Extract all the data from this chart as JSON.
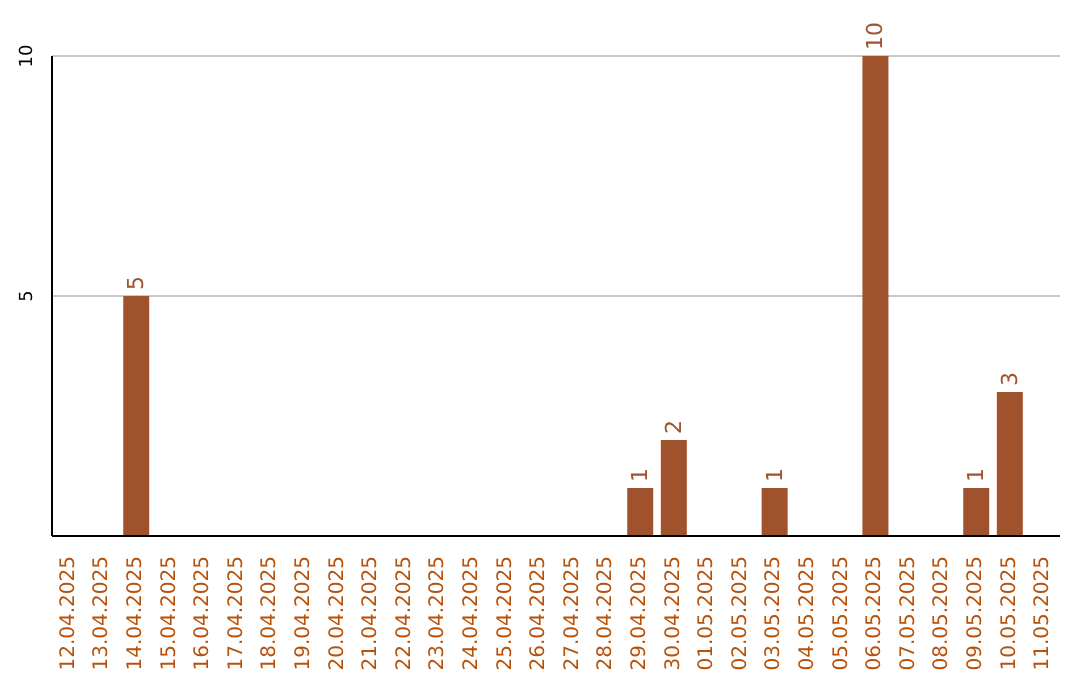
{
  "chart_data": {
    "type": "bar",
    "categories": [
      "12.04.2025",
      "13.04.2025",
      "14.04.2025",
      "15.04.2025",
      "16.04.2025",
      "17.04.2025",
      "18.04.2025",
      "19.04.2025",
      "20.04.2025",
      "21.04.2025",
      "22.04.2025",
      "23.04.2025",
      "24.04.2025",
      "25.04.2025",
      "26.04.2025",
      "27.04.2025",
      "28.04.2025",
      "29.04.2025",
      "30.04.2025",
      "01.05.2025",
      "02.05.2025",
      "03.05.2025",
      "04.05.2025",
      "05.05.2025",
      "06.05.2025",
      "07.05.2025",
      "08.05.2025",
      "09.05.2025",
      "10.05.2025",
      "11.05.2025"
    ],
    "values": [
      0,
      0,
      5,
      0,
      0,
      0,
      0,
      0,
      0,
      0,
      0,
      0,
      0,
      0,
      0,
      0,
      0,
      1,
      2,
      0,
      0,
      1,
      0,
      0,
      10,
      0,
      0,
      1,
      3,
      0
    ],
    "value_labels": [
      null,
      null,
      "5",
      null,
      null,
      null,
      null,
      null,
      null,
      null,
      null,
      null,
      null,
      null,
      null,
      null,
      null,
      "1",
      "2",
      null,
      null,
      "1",
      null,
      null,
      "10",
      null,
      null,
      "1",
      "3",
      null
    ],
    "color": "#a0522d",
    "ylim": [
      0,
      10
    ],
    "yticks": [
      5,
      10
    ],
    "grid": "y"
  }
}
